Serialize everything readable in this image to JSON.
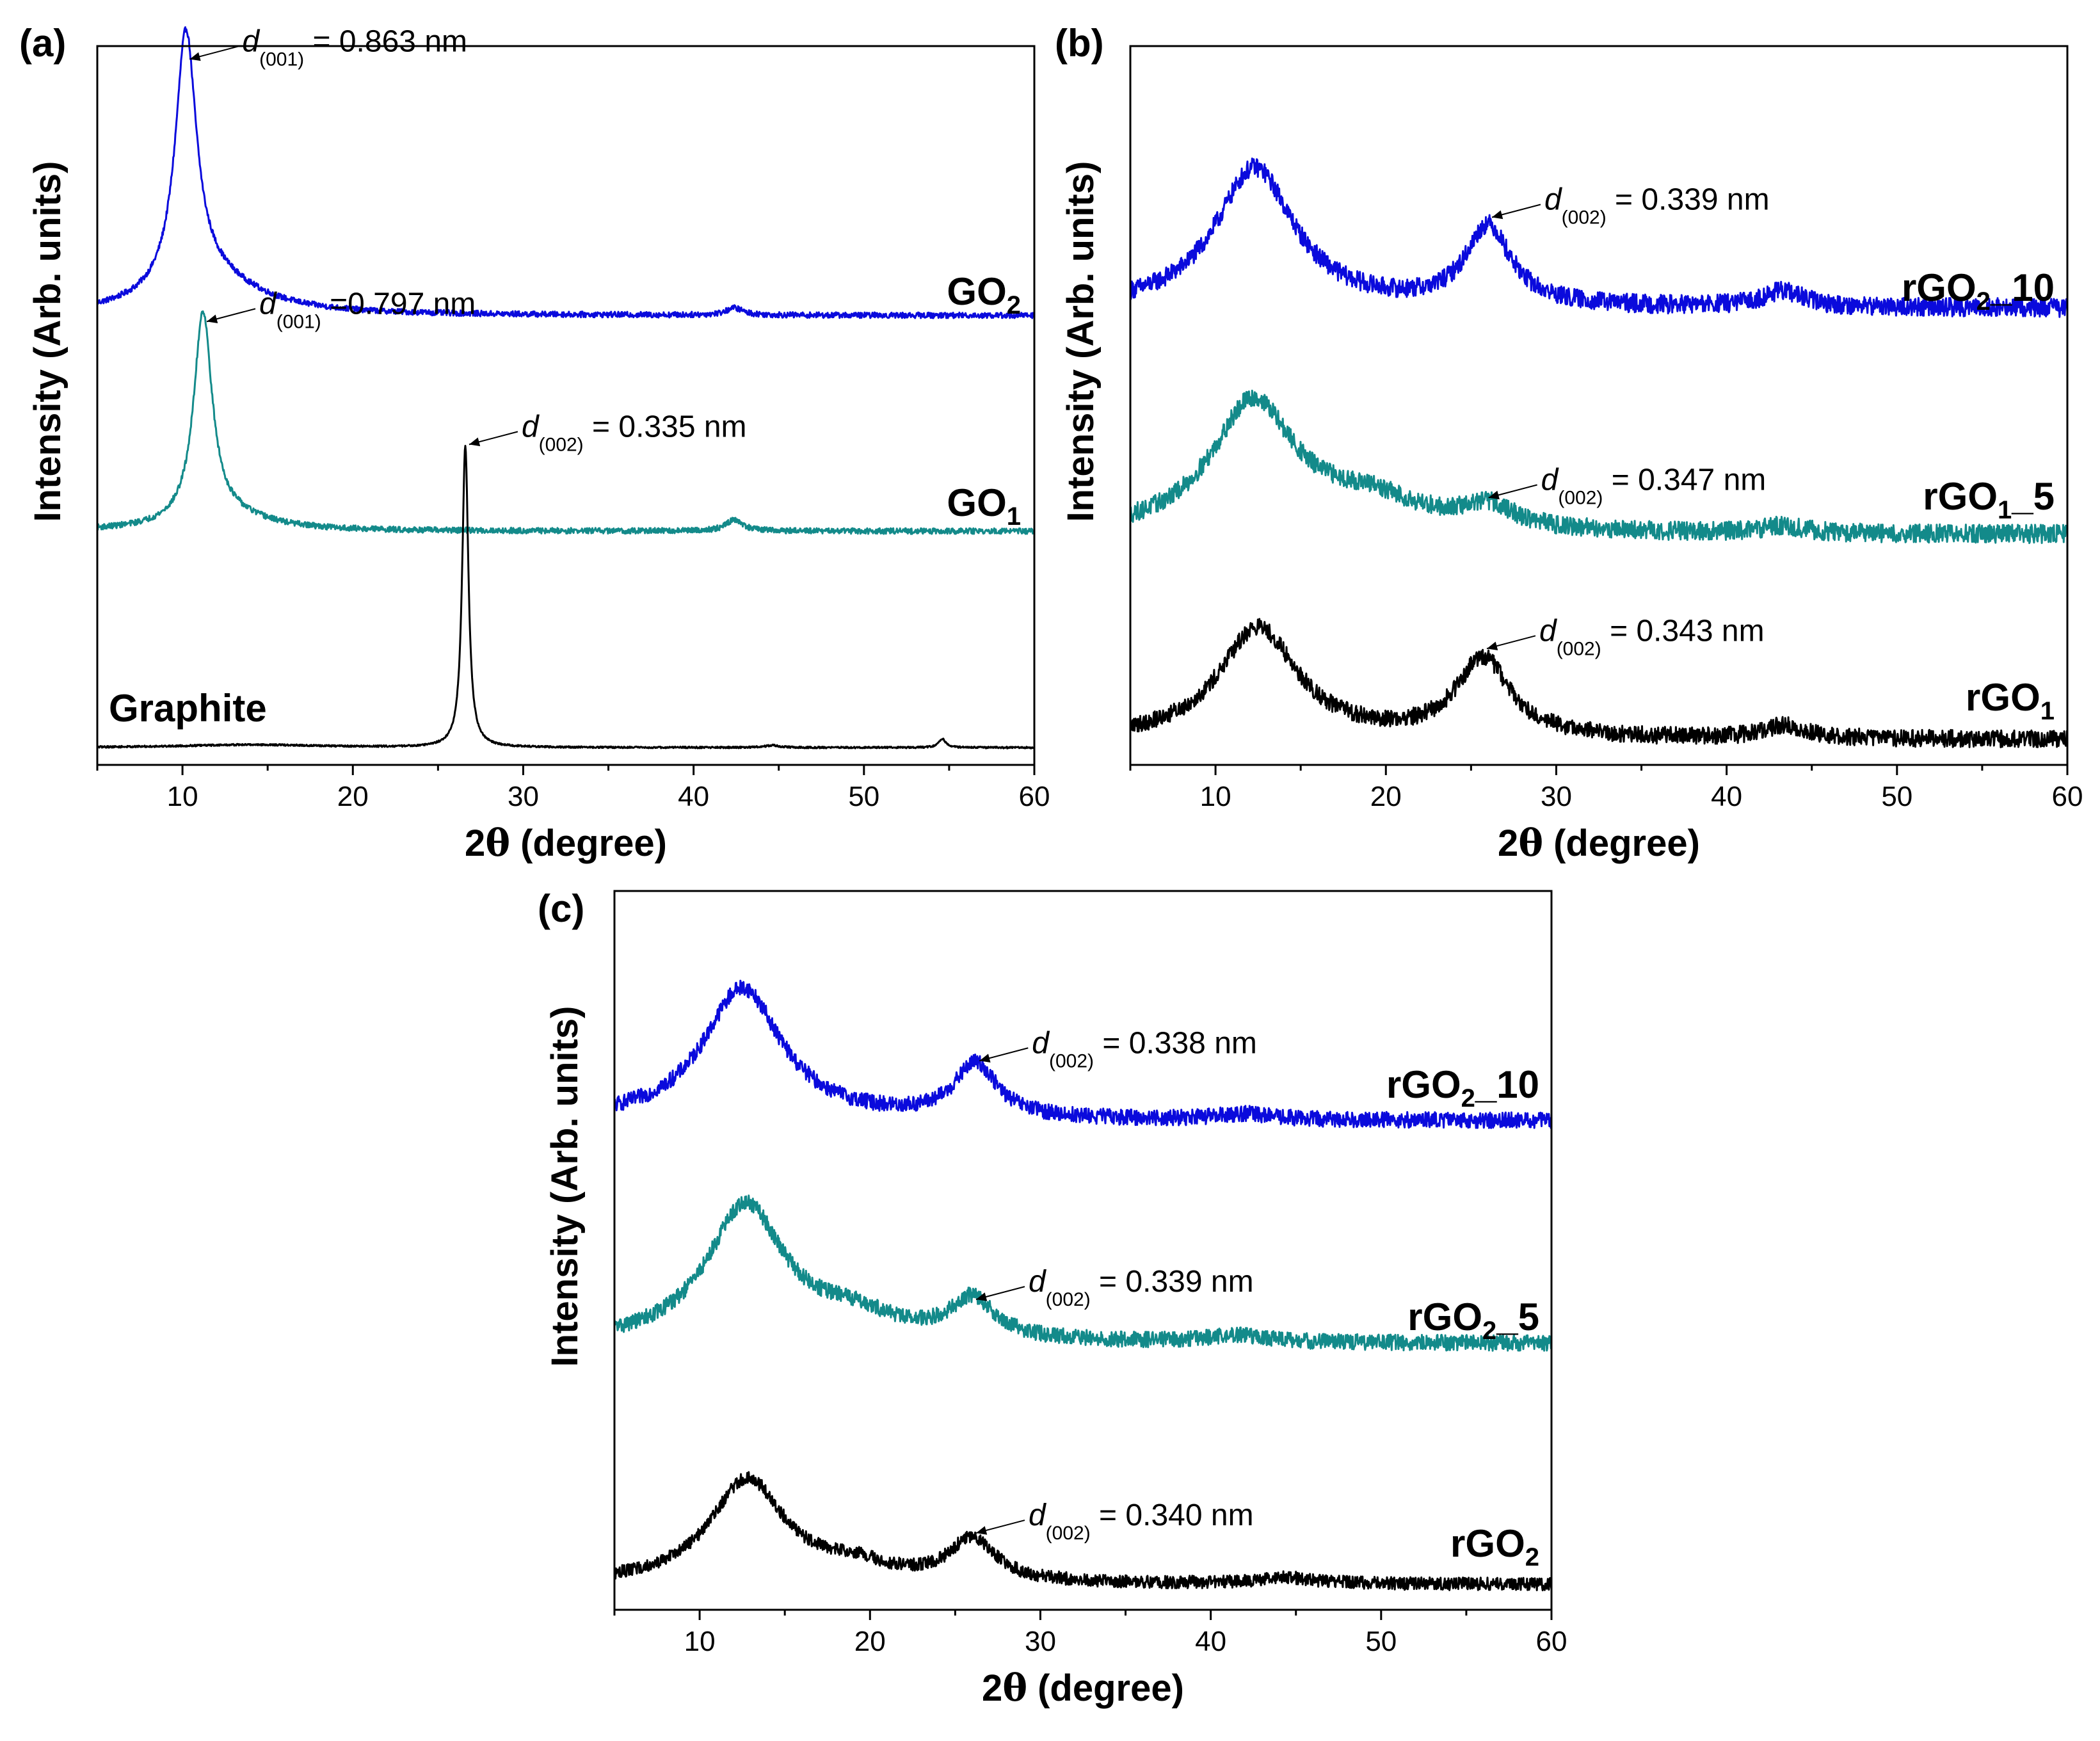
{
  "figure": {
    "axis_xlabel_prefix": "2",
    "axis_xlabel_theta": "θ",
    "axis_xlabel_suffix": " (degree)",
    "axis_ylabel": "Intensity (Arb. units)"
  },
  "chart_data": [
    {
      "panel": "(a)",
      "type": "line",
      "xlabel": "2θ (degree)",
      "ylabel": "Intensity (Arb. units)",
      "xlim": [
        5,
        60
      ],
      "ylim": [
        0,
        100
      ],
      "xticks": [
        10,
        20,
        30,
        40,
        50,
        60
      ],
      "grid": false,
      "series": [
        {
          "name": "GO",
          "sub": "2",
          "suffix": "",
          "color": "#0a0adc",
          "baseline": 62.5,
          "noise": 0.4,
          "peaks": [
            {
              "x": 10.2,
              "h": 35.5,
              "w": 0.75
            },
            {
              "x": 11.5,
              "h": 5,
              "w": 3.5
            },
            {
              "x": 42.4,
              "h": 1.0,
              "w": 0.6
            }
          ]
        },
        {
          "name": "GO",
          "sub": "1",
          "suffix": "",
          "color": "#138a8a",
          "baseline": 32.5,
          "noise": 0.4,
          "peaks": [
            {
              "x": 11.2,
              "h": 29.0,
              "w": 0.65
            },
            {
              "x": 12.5,
              "h": 2,
              "w": 3
            },
            {
              "x": 42.4,
              "h": 1.6,
              "w": 0.6
            }
          ]
        },
        {
          "name": "Graphite",
          "sub": "",
          "suffix": "",
          "color": "#000000",
          "baseline": 2.4,
          "noise": 0.12,
          "peaks": [
            {
              "x": 26.6,
              "h": 42.0,
              "w": 0.22
            },
            {
              "x": 14,
              "h": 0.4,
              "w": 5
            },
            {
              "x": 54.6,
              "h": 1.2,
              "w": 0.25
            },
            {
              "x": 44.6,
              "h": 0.3,
              "w": 0.5
            }
          ]
        }
      ],
      "annotations": [
        {
          "d": "d",
          "sub": "(001)",
          "text": " = 0.863 nm",
          "x": 10.2,
          "y": 98.0
        },
        {
          "d": "d",
          "sub": "(001)",
          "text": " =0.797 nm",
          "x": 11.2,
          "y": 61.5
        },
        {
          "d": "d",
          "sub": "(002)",
          "text": " = 0.335 nm",
          "x": 26.6,
          "y": 44.4
        }
      ]
    },
    {
      "panel": "(b)",
      "type": "line",
      "xlabel": "2θ (degree)",
      "ylabel": "Intensity (Arb. units)",
      "xlim": [
        5,
        60
      ],
      "ylim": [
        0,
        100
      ],
      "xticks": [
        10,
        20,
        30,
        40,
        50,
        60
      ],
      "grid": false,
      "series": [
        {
          "name": "rGO",
          "sub": "2",
          "suffix": "_10",
          "color": "#0a0adc",
          "baseline": 63.5,
          "noise": 1.3,
          "peaks": [
            {
              "x": 12.3,
              "h": 19.5,
              "w": 2.8
            },
            {
              "x": 26.0,
              "h": 11.0,
              "w": 1.6
            },
            {
              "x": 43.3,
              "h": 2.2,
              "w": 1.5
            }
          ]
        },
        {
          "name": "rGO",
          "sub": "1",
          "suffix": "_5",
          "color": "#138a8a",
          "baseline": 32.0,
          "noise": 1.3,
          "peaks": [
            {
              "x": 12.2,
              "h": 18.0,
              "w": 3.0
            },
            {
              "x": 19,
              "h": 4,
              "w": 4
            },
            {
              "x": 26.0,
              "h": 3.0,
              "w": 1.8
            },
            {
              "x": 43.3,
              "h": 1.0,
              "w": 1.5
            }
          ]
        },
        {
          "name": "rGO",
          "sub": "1",
          "suffix": "",
          "color": "#000000",
          "baseline": 3.5,
          "noise": 1.2,
          "peaks": [
            {
              "x": 12.5,
              "h": 15.5,
              "w": 2.8
            },
            {
              "x": 25.7,
              "h": 11.0,
              "w": 1.9
            },
            {
              "x": 43.4,
              "h": 1.8,
              "w": 1.5
            }
          ]
        }
      ],
      "annotations": [
        {
          "d": "d",
          "sub": "(002)",
          "text": " = 0.339 nm",
          "x": 26.0,
          "y": 76.0
        },
        {
          "d": "d",
          "sub": "(002)",
          "text": " = 0.347 nm",
          "x": 25.8,
          "y": 37.0
        },
        {
          "d": "d",
          "sub": "(002)",
          "text": " = 0.343 nm",
          "x": 25.7,
          "y": 16.0
        }
      ]
    },
    {
      "panel": "(c)",
      "type": "line",
      "xlabel": "2θ (degree)",
      "ylabel": "Intensity (Arb. units)",
      "xlim": [
        5,
        60
      ],
      "ylim": [
        0,
        100
      ],
      "xticks": [
        10,
        20,
        30,
        40,
        50,
        60
      ],
      "grid": false,
      "series": [
        {
          "name": "rGO",
          "sub": "2",
          "suffix": "_10",
          "color": "#0a0adc",
          "baseline": 68.0,
          "noise": 1.1,
          "peaks": [
            {
              "x": 12.5,
              "h": 18.5,
              "w": 2.8
            },
            {
              "x": 26.2,
              "h": 7.5,
              "w": 1.5
            },
            {
              "x": 42,
              "h": 0.8,
              "w": 2
            }
          ]
        },
        {
          "name": "rGO",
          "sub": "2",
          "suffix": "_5",
          "color": "#138a8a",
          "baseline": 37.0,
          "noise": 1.1,
          "peaks": [
            {
              "x": 12.7,
              "h": 19.0,
              "w": 2.8
            },
            {
              "x": 19,
              "h": 3,
              "w": 3
            },
            {
              "x": 26.0,
              "h": 5.5,
              "w": 1.6
            },
            {
              "x": 41.5,
              "h": 1.0,
              "w": 2
            }
          ]
        },
        {
          "name": "rGO",
          "sub": "2",
          "suffix": "",
          "color": "#000000",
          "baseline": 3.5,
          "noise": 0.9,
          "peaks": [
            {
              "x": 12.8,
              "h": 14.5,
              "w": 2.7
            },
            {
              "x": 19,
              "h": 2,
              "w": 2.5
            },
            {
              "x": 26.0,
              "h": 6.0,
              "w": 1.6
            },
            {
              "x": 44.5,
              "h": 0.8,
              "w": 2
            }
          ]
        }
      ],
      "annotations": [
        {
          "d": "d",
          "sub": "(002)",
          "text": " = 0.338 nm",
          "x": 26.2,
          "y": 76.2
        },
        {
          "d": "d",
          "sub": "(002)",
          "text": " = 0.339 nm",
          "x": 26.0,
          "y": 43.0
        },
        {
          "d": "d",
          "sub": "(002)",
          "text": " = 0.340 nm",
          "x": 26.0,
          "y": 10.5
        }
      ]
    }
  ]
}
